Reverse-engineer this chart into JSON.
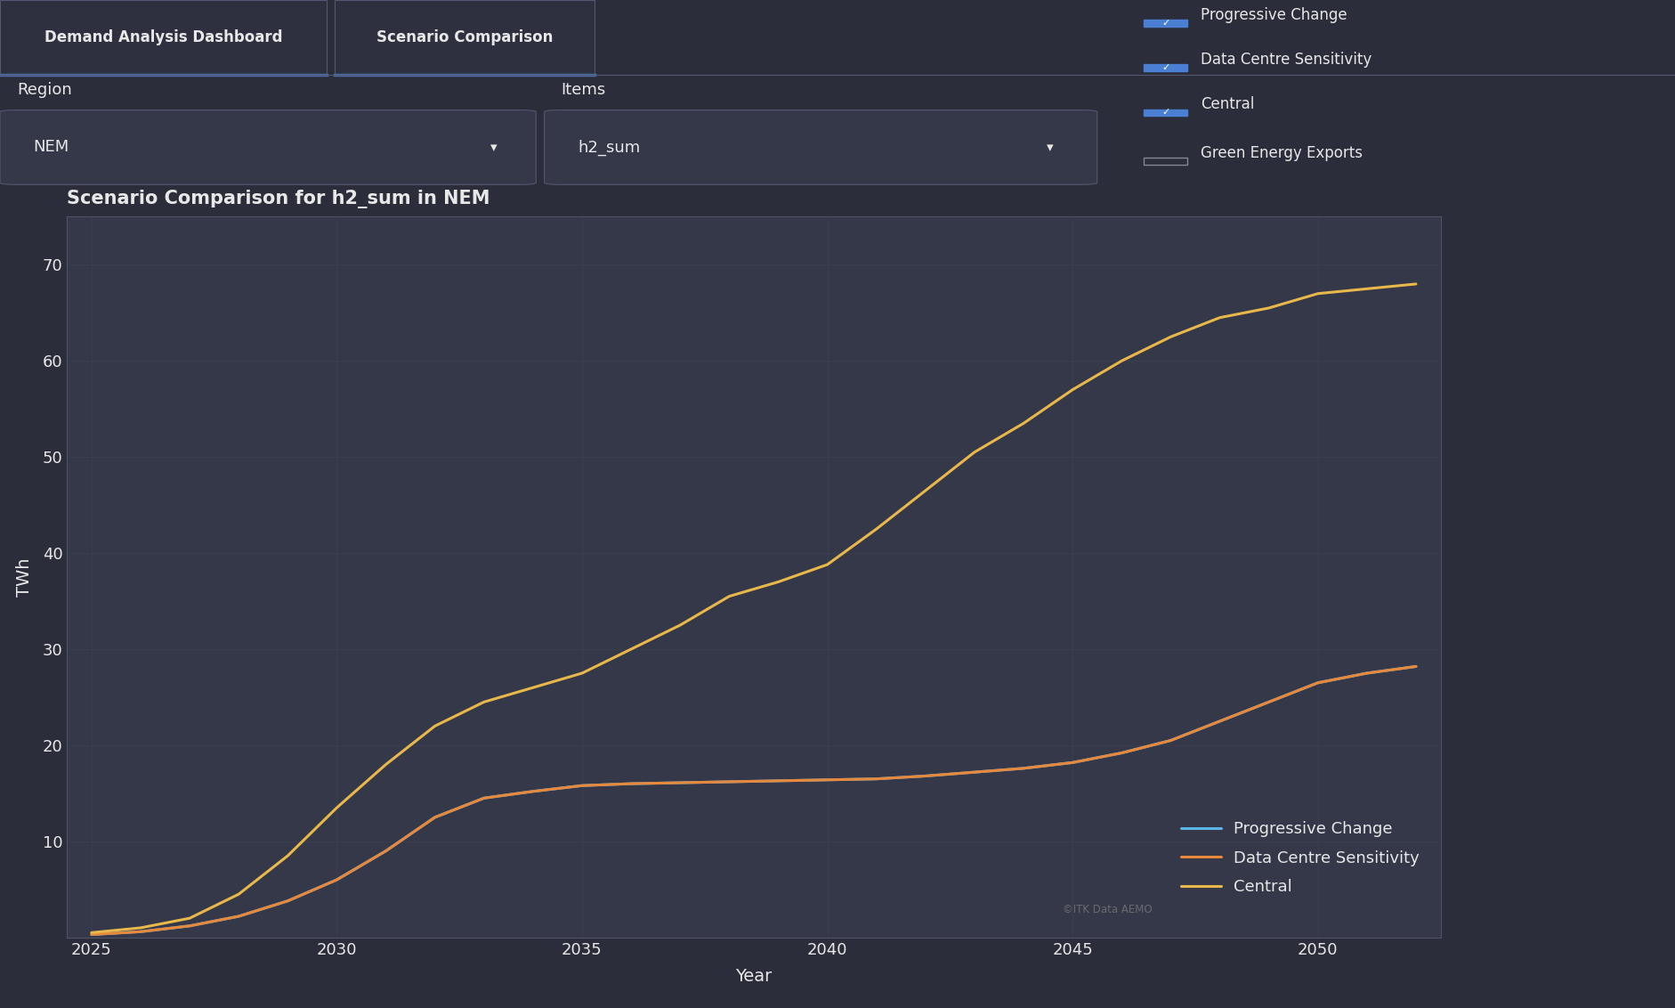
{
  "title": "Scenario Comparison for h2_sum in NEM",
  "xlabel": "Year",
  "ylabel": "TWh",
  "bg_color": "#2b2d3a",
  "header_bg": "#23252f",
  "tab_active_bg": "#2b2d3a",
  "tab_inactive_bg": "#1e2029",
  "plot_bg_color": "#353848",
  "text_color": "#e8e8e8",
  "grid_color": "#444660",
  "ylim": [
    0,
    75
  ],
  "xlim": [
    2024.5,
    2052.5
  ],
  "yticks": [
    10,
    20,
    30,
    40,
    50,
    60,
    70
  ],
  "xticks": [
    2025,
    2030,
    2035,
    2040,
    2045,
    2050
  ],
  "watermark": "©ITK Data AEMO",
  "tab1_label": "Demand Analysis Dashboard",
  "tab2_label": "Scenario Comparison",
  "region_label": "Region",
  "region_value": "NEM",
  "items_label": "Items",
  "items_value": "h2_sum",
  "checkbox_labels": [
    "Progressive Change",
    "Data Centre Sensitivity",
    "Central",
    "Green Energy Exports"
  ],
  "checkbox_checked": [
    true,
    true,
    true,
    false
  ],
  "checkbox_color": "#4a7fd4",
  "series": [
    {
      "name": "Progressive Change",
      "color": "#5ab4e5",
      "years": [
        2025,
        2026,
        2027,
        2028,
        2029,
        2030,
        2031,
        2032,
        2033,
        2034,
        2035,
        2036,
        2037,
        2038,
        2039,
        2040,
        2041,
        2042,
        2043,
        2044,
        2045,
        2046,
        2047,
        2048,
        2049,
        2050,
        2051,
        2052
      ],
      "values": [
        0.3,
        0.6,
        1.2,
        2.2,
        3.8,
        6.0,
        9.0,
        12.5,
        14.5,
        15.2,
        15.8,
        16.0,
        16.1,
        16.2,
        16.3,
        16.4,
        16.5,
        16.8,
        17.2,
        17.6,
        18.2,
        19.2,
        20.5,
        22.5,
        24.5,
        26.5,
        27.5,
        28.2
      ]
    },
    {
      "name": "Data Centre Sensitivity",
      "color": "#e8883a",
      "years": [
        2025,
        2026,
        2027,
        2028,
        2029,
        2030,
        2031,
        2032,
        2033,
        2034,
        2035,
        2036,
        2037,
        2038,
        2039,
        2040,
        2041,
        2042,
        2043,
        2044,
        2045,
        2046,
        2047,
        2048,
        2049,
        2050,
        2051,
        2052
      ],
      "values": [
        0.3,
        0.6,
        1.2,
        2.2,
        3.8,
        6.0,
        9.0,
        12.5,
        14.5,
        15.2,
        15.8,
        16.0,
        16.1,
        16.2,
        16.3,
        16.4,
        16.5,
        16.8,
        17.2,
        17.6,
        18.2,
        19.2,
        20.5,
        22.5,
        24.5,
        26.5,
        27.5,
        28.2
      ]
    },
    {
      "name": "Central",
      "color": "#e8b84b",
      "years": [
        2025,
        2026,
        2027,
        2028,
        2029,
        2030,
        2031,
        2032,
        2033,
        2034,
        2035,
        2036,
        2037,
        2038,
        2039,
        2040,
        2041,
        2042,
        2043,
        2044,
        2045,
        2046,
        2047,
        2048,
        2049,
        2050,
        2051,
        2052
      ],
      "values": [
        0.5,
        1.0,
        2.0,
        4.5,
        8.5,
        13.5,
        18.0,
        22.0,
        24.5,
        26.0,
        27.5,
        30.0,
        32.5,
        35.5,
        37.0,
        38.8,
        42.5,
        46.5,
        50.5,
        53.5,
        57.0,
        60.0,
        62.5,
        64.5,
        65.5,
        67.0,
        67.5,
        68.0
      ]
    }
  ],
  "legend_entries": [
    "Progressive Change",
    "Data Centre Sensitivity",
    "Central"
  ]
}
